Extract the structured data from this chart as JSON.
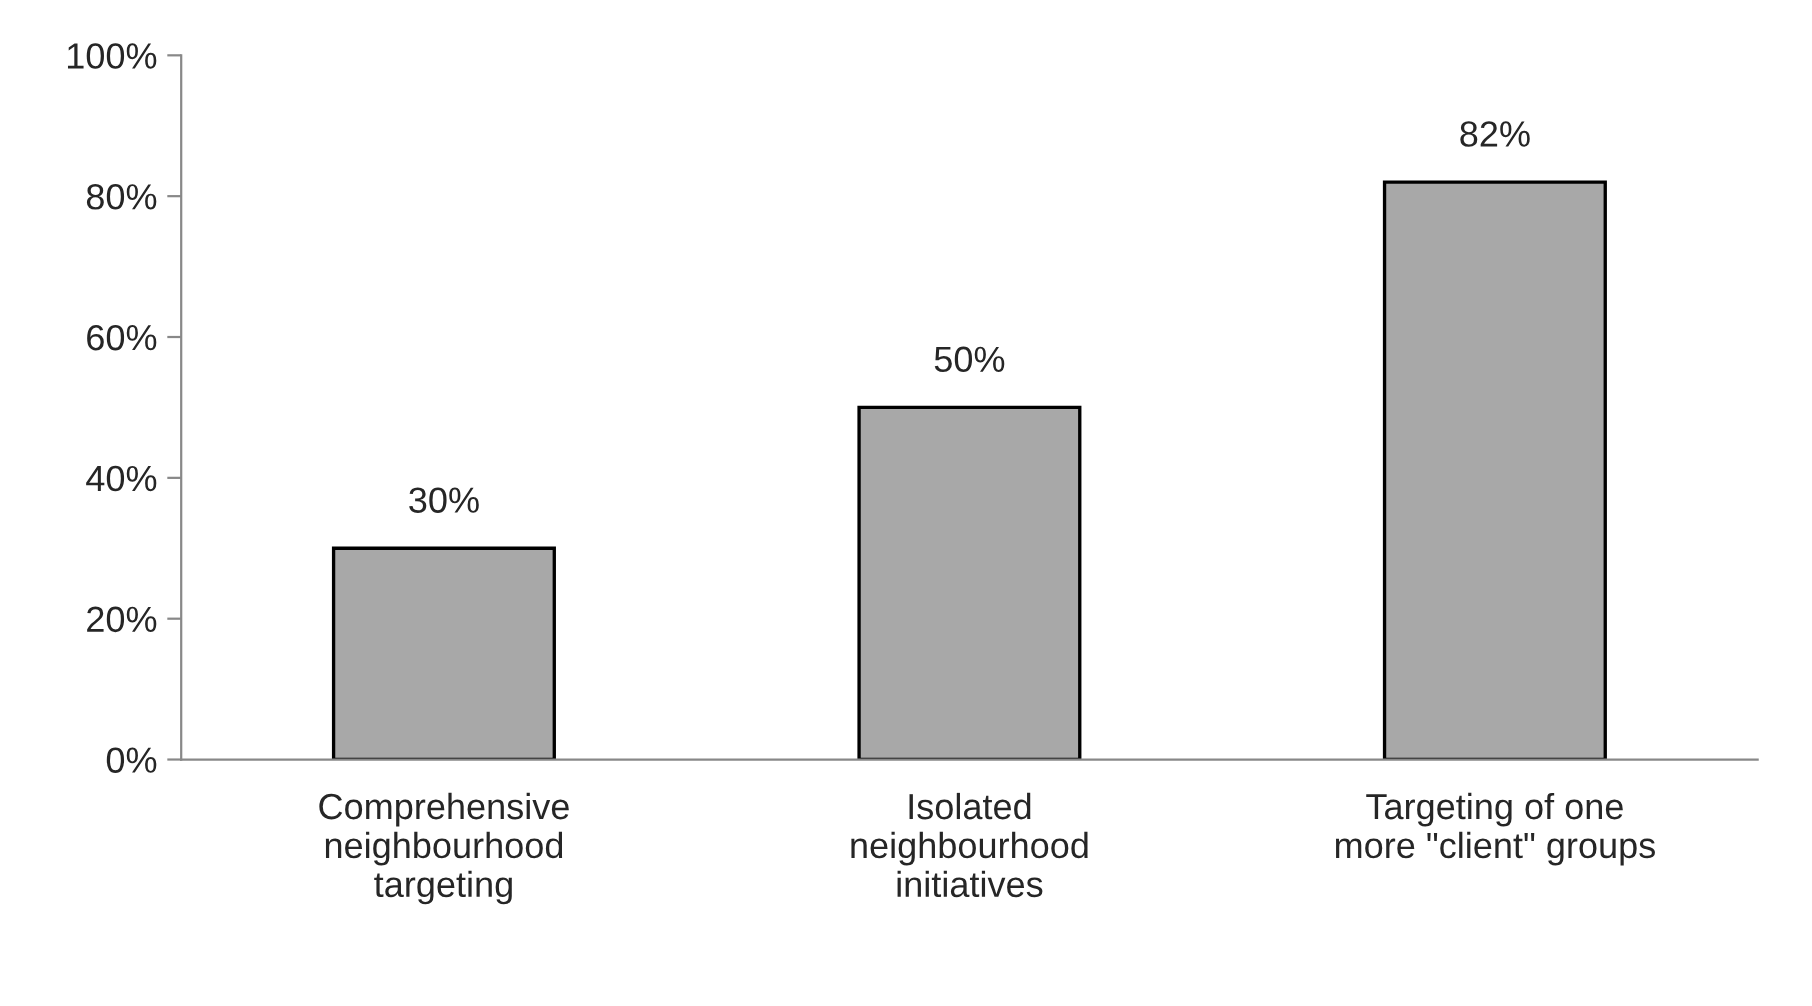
{
  "chart_data": {
    "type": "bar",
    "categories": [
      "Comprehensive\nneighbourhood\ntargeting",
      "Isolated\nneighbourhood\ninitiatives",
      "Targeting of one\nmore \"client\" groups"
    ],
    "values": [
      30,
      50,
      82
    ],
    "value_labels": [
      "30%",
      "50%",
      "82%"
    ],
    "color": "#a8a8a8",
    "ylim": [
      0,
      100
    ],
    "yticks": [
      {
        "value": 0,
        "label": "0%"
      },
      {
        "value": 20,
        "label": "20%"
      },
      {
        "value": 40,
        "label": "40%"
      },
      {
        "value": 60,
        "label": "60%"
      },
      {
        "value": 80,
        "label": "80%"
      },
      {
        "value": 100,
        "label": "100%"
      }
    ],
    "grid": false,
    "legend": false
  }
}
